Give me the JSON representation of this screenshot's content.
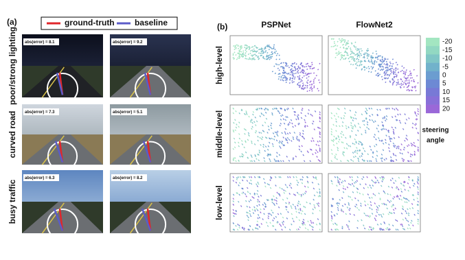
{
  "panel_a": {
    "label": "(a)",
    "legend": [
      {
        "name": "ground-truth",
        "color": "#e0262b"
      },
      {
        "name": "baseline",
        "color": "#5b5bc8"
      }
    ],
    "rows": [
      {
        "label": "poor/strong lighting",
        "errors": [
          "abs(error) = 8.1",
          "abs(error) = 9.2"
        ]
      },
      {
        "label": "curved road",
        "errors": [
          "abs(error) = 7.3",
          "abs(error) = 5.1"
        ]
      },
      {
        "label": "busy traffic",
        "errors": [
          "abs(error) = 6.3",
          "abs(error) = 8.2"
        ]
      }
    ]
  },
  "panel_b": {
    "label": "(b)",
    "columns": [
      "PSPNet",
      "FlowNet2"
    ],
    "rows": [
      "high-level",
      "middle-level",
      "low-level"
    ],
    "colorbar": {
      "ticks": [
        -20,
        -15,
        -10,
        -5,
        0,
        5,
        10,
        15,
        20
      ],
      "colors": [
        "#a3e6c1",
        "#92d8c2",
        "#80c6c6",
        "#71b2cb",
        "#6b9dd0",
        "#6d89d4",
        "#7879d6",
        "#8870d8",
        "#9a68d8"
      ],
      "label": [
        "steering",
        "angle"
      ]
    }
  }
}
